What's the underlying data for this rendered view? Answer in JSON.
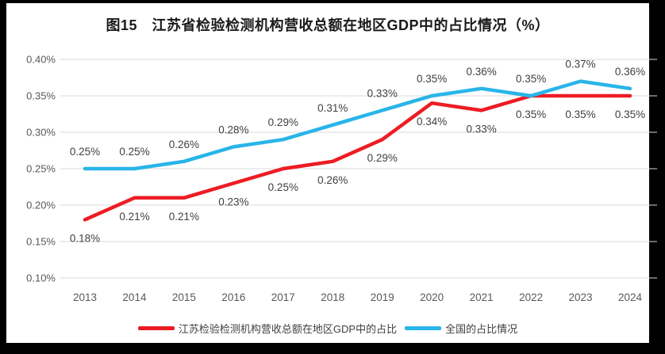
{
  "title": "图15　江苏省检验检测机构营收总额在地区GDP中的占比情况（%）",
  "chart_data": {
    "type": "line",
    "categories": [
      "2013",
      "2014",
      "2015",
      "2016",
      "2017",
      "2018",
      "2019",
      "2020",
      "2021",
      "2022",
      "2023",
      "2024"
    ],
    "series": [
      {
        "name": "江苏检验检测机构营收总额在地区GDP中的占比",
        "color": "#ed1c24",
        "values": [
          0.18,
          0.21,
          0.21,
          0.23,
          0.25,
          0.26,
          0.29,
          0.34,
          0.33,
          0.35,
          0.35,
          0.35
        ],
        "labels": [
          "0.18%",
          "0.21%",
          "0.21%",
          "0.23%",
          "0.25%",
          "0.26%",
          "0.29%",
          "0.34%",
          "0.33%",
          "0.35%",
          "0.35%",
          "0.35%"
        ],
        "label_position": "below"
      },
      {
        "name": "全国的占比情况",
        "color": "#29b5e8",
        "values": [
          0.25,
          0.25,
          0.26,
          0.28,
          0.29,
          0.31,
          0.33,
          0.35,
          0.36,
          0.35,
          0.37,
          0.36
        ],
        "labels": [
          "0.25%",
          "0.25%",
          "0.26%",
          "0.28%",
          "0.29%",
          "0.31%",
          "0.33%",
          "0.35%",
          "0.36%",
          "0.35%",
          "0.37%",
          "0.36%"
        ],
        "label_position": "above"
      }
    ],
    "y_axis": {
      "unit": "%",
      "min": 0.1,
      "max": 0.4,
      "ticks": [
        {
          "label": "0.40%",
          "value": 0.4
        },
        {
          "label": "0.35%",
          "value": 0.35
        },
        {
          "label": "0.30%",
          "value": 0.3
        },
        {
          "label": "0.25%",
          "value": 0.25
        },
        {
          "label": "0.20%",
          "value": 0.2
        },
        {
          "label": "0.15%",
          "value": 0.15
        },
        {
          "label": "0.10%",
          "value": 0.1
        }
      ]
    },
    "grid": true,
    "legend_position": "bottom"
  },
  "colors": {
    "grid": "#d9d9d9",
    "axis_text": "#595959",
    "data_label_text": "#3f3f3f",
    "frame": "#000000",
    "plot_background": "#ffffff"
  }
}
